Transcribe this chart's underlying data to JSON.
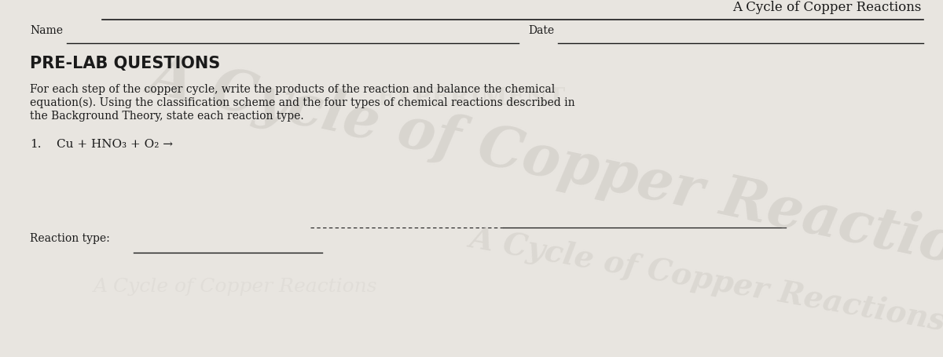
{
  "title": "A Cycle of Copper Reactions",
  "title_fontsize": 12,
  "bg_color": "#e8e5e0",
  "text_color": "#1a1a1a",
  "name_label": "Name",
  "date_label": "Date",
  "section_header": "PRE-LAB QUESTIONS",
  "body_line1": "For each step of the copper cycle, write the products of the reaction and balance the chemical",
  "body_line2": "equation(s). Using the classification scheme and the four types of chemical reactions described in",
  "body_line3": "the Background Theory, state each reaction type.",
  "reaction_label": "1.",
  "reaction_text": "Cu + HNO₃ + O₂ →",
  "reaction_type_label": "Reaction type:",
  "watermark_text": "A Cycle of Copper Reactions",
  "watermark_color": "#ccc8c2",
  "watermark_alpha": 0.55,
  "font_family": "serif",
  "sans_family": "sans-serif"
}
